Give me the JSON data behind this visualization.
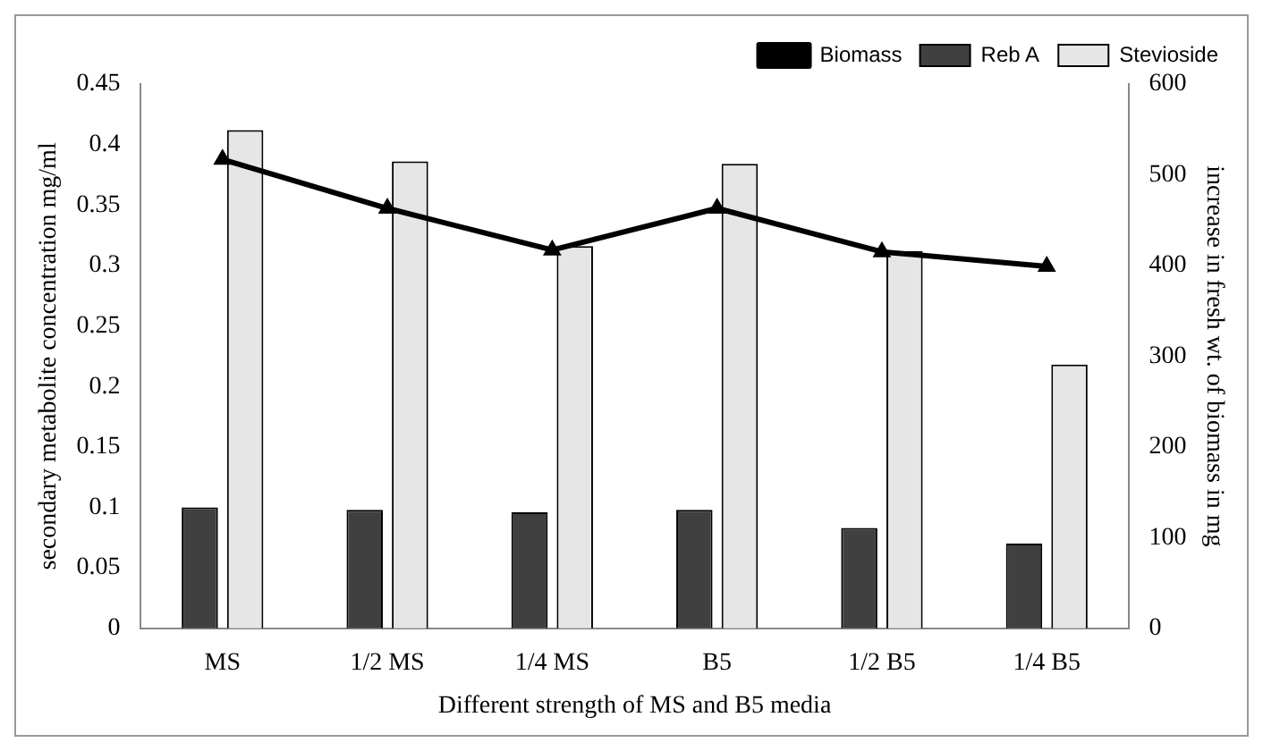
{
  "chart_data": {
    "type": "bar",
    "xlabel": "Different strength of MS and B5 media",
    "ylabel": "secondary metabolite concentration mg/ml",
    "y2label": "increase in fresh wt. of biomass in mg",
    "categories": [
      "MS",
      "1/2 MS",
      "1/4 MS",
      "B5",
      "1/2 B5",
      "1/4 B5"
    ],
    "series": [
      {
        "name": "Reb A",
        "color": "#404040",
        "values": [
          0.1,
          0.098,
          0.096,
          0.098,
          0.083,
          0.07
        ]
      },
      {
        "name": "Stevioside",
        "color": "#e6e6e6",
        "values": [
          0.412,
          0.386,
          0.316,
          0.384,
          0.312,
          0.218
        ]
      },
      {
        "name": "Biomass",
        "type": "line",
        "axis": "y2",
        "color": "#000000",
        "values": [
          517,
          463,
          417,
          463,
          415,
          399
        ]
      }
    ],
    "ylim": [
      0,
      0.45
    ],
    "yticks": [
      0,
      0.05,
      0.1,
      0.15,
      0.2,
      0.25,
      0.3,
      0.35,
      0.4,
      0.45
    ],
    "y2lim": [
      0,
      600
    ],
    "y2ticks": [
      0,
      100,
      200,
      300,
      400,
      500,
      600
    ],
    "grid": false,
    "legend": "top right",
    "marker": "triangle",
    "line_style": "solid"
  }
}
